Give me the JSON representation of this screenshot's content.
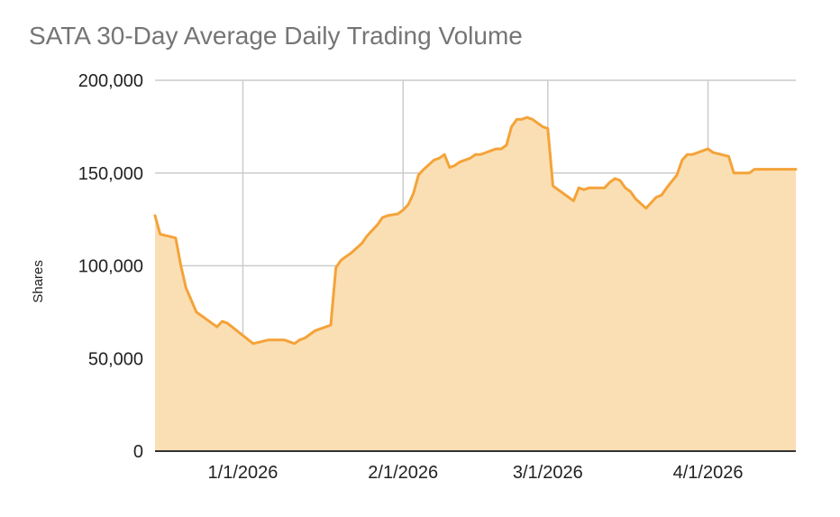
{
  "chart_data": {
    "type": "area",
    "title": "SATA 30-Day Average Daily Trading Volume",
    "xlabel": "",
    "ylabel": "Shares",
    "ylim": [
      0,
      200000
    ],
    "xlim": [
      "2025-12-15",
      "2026-04-18"
    ],
    "y_ticks": [
      {
        "value": 0,
        "label": "0"
      },
      {
        "value": 50000,
        "label": "50,000"
      },
      {
        "value": 100000,
        "label": "100,000"
      },
      {
        "value": 150000,
        "label": "150,000"
      },
      {
        "value": 200000,
        "label": "200,000"
      }
    ],
    "x_ticks": [
      {
        "value": "2026-01-01",
        "label": "1/1/2026"
      },
      {
        "value": "2026-02-01",
        "label": "2/1/2026"
      },
      {
        "value": "2026-03-01",
        "label": "3/1/2026"
      },
      {
        "value": "2026-04-01",
        "label": "4/1/2026"
      }
    ],
    "grid": true,
    "legend": "none",
    "colors": {
      "line": "#f4a339",
      "fill": "#fbdfb4",
      "grid": "#cccccc",
      "axis": "#333333"
    },
    "series": [
      {
        "x": [
          "2025-12-15",
          "2025-12-16",
          "2025-12-19",
          "2025-12-20",
          "2025-12-21",
          "2025-12-23",
          "2025-12-26",
          "2025-12-27",
          "2025-12-28",
          "2025-12-29",
          "2026-01-03",
          "2026-01-06",
          "2026-01-07",
          "2026-01-09",
          "2026-01-10",
          "2026-01-11",
          "2026-01-12",
          "2026-01-13",
          "2026-01-14",
          "2026-01-15",
          "2026-01-18",
          "2026-01-19",
          "2026-01-20",
          "2026-01-21",
          "2026-01-22",
          "2026-01-24",
          "2026-01-25",
          "2026-01-27",
          "2026-01-28",
          "2026-01-29",
          "2026-01-31",
          "2026-02-01",
          "2026-02-02",
          "2026-02-03",
          "2026-02-04",
          "2026-02-05",
          "2026-02-07",
          "2026-02-08",
          "2026-02-09",
          "2026-02-10",
          "2026-02-11",
          "2026-02-12",
          "2026-02-14",
          "2026-02-15",
          "2026-02-16",
          "2026-02-17",
          "2026-02-18",
          "2026-02-19",
          "2026-02-20",
          "2026-02-21",
          "2026-02-22",
          "2026-02-23",
          "2026-02-24",
          "2026-02-25",
          "2026-02-26",
          "2026-02-28",
          "2026-03-01",
          "2026-03-02",
          "2026-03-03",
          "2026-03-04",
          "2026-03-06",
          "2026-03-07",
          "2026-03-08",
          "2026-03-09",
          "2026-03-10",
          "2026-03-11",
          "2026-03-12",
          "2026-03-13",
          "2026-03-14",
          "2026-03-15",
          "2026-03-16",
          "2026-03-17",
          "2026-03-18",
          "2026-03-20",
          "2026-03-21",
          "2026-03-22",
          "2026-03-23",
          "2026-03-24",
          "2026-03-26",
          "2026-03-27",
          "2026-03-28",
          "2026-03-29",
          "2026-03-30",
          "2026-03-31",
          "2026-04-01",
          "2026-04-02",
          "2026-04-05",
          "2026-04-06",
          "2026-04-07",
          "2026-04-08",
          "2026-04-09",
          "2026-04-10",
          "2026-04-11",
          "2026-04-12",
          "2026-04-13",
          "2026-04-14",
          "2026-04-15",
          "2026-04-17",
          "2026-04-18"
        ],
        "y": [
          127000,
          117000,
          115000,
          100000,
          88000,
          75000,
          69000,
          67000,
          70000,
          69000,
          58000,
          60000,
          60000,
          60000,
          59000,
          58000,
          60000,
          61000,
          63000,
          65000,
          68000,
          99000,
          103000,
          105000,
          107000,
          112000,
          116000,
          122000,
          126000,
          127000,
          128000,
          130000,
          133000,
          139000,
          149000,
          152000,
          157000,
          158000,
          160000,
          153000,
          154000,
          156000,
          158000,
          160000,
          160000,
          161000,
          162000,
          163000,
          163000,
          165000,
          175000,
          179000,
          179000,
          180000,
          179000,
          175000,
          174000,
          143000,
          141000,
          139000,
          135000,
          142000,
          141000,
          142000,
          142000,
          142000,
          142000,
          145000,
          147000,
          146000,
          142000,
          140000,
          136000,
          131000,
          134000,
          137000,
          138000,
          142000,
          149000,
          157000,
          160000,
          160000,
          161000,
          162000,
          163000,
          161000,
          159000,
          150000,
          150000,
          150000,
          150000,
          152000,
          152000,
          152000,
          152000,
          152000,
          152000,
          152000,
          152000
        ]
      }
    ]
  }
}
